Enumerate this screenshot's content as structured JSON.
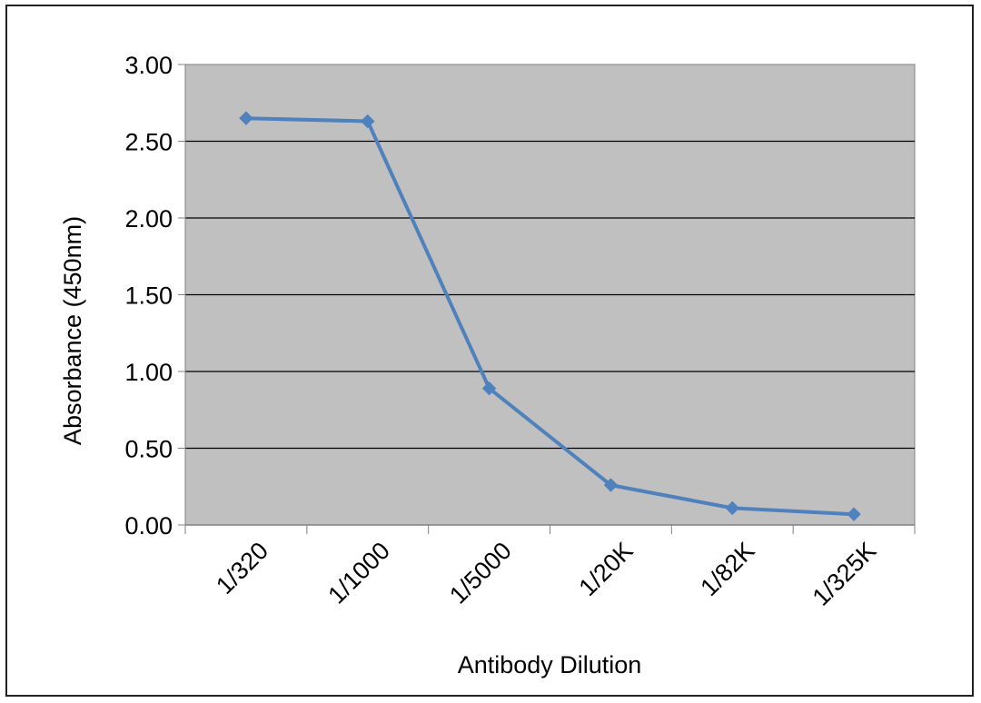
{
  "chart_data": {
    "type": "line",
    "title": "",
    "xlabel": "Antibody Dilution",
    "ylabel": "Absorbance (450nm)",
    "categories": [
      "1/320",
      "1/1000",
      "1/5000",
      "1/20K",
      "1/82K",
      "1/325K"
    ],
    "series": [
      {
        "values": [
          2.65,
          2.63,
          0.89,
          0.26,
          0.11,
          0.07
        ],
        "color": "#4f81bd"
      }
    ],
    "ylim": [
      0,
      3
    ],
    "yticks": [
      "0.00",
      "0.50",
      "1.00",
      "1.50",
      "2.00",
      "2.50",
      "3.00"
    ],
    "grid": "horizontal",
    "legend": "none",
    "plot_background": "#c0c0c0"
  }
}
